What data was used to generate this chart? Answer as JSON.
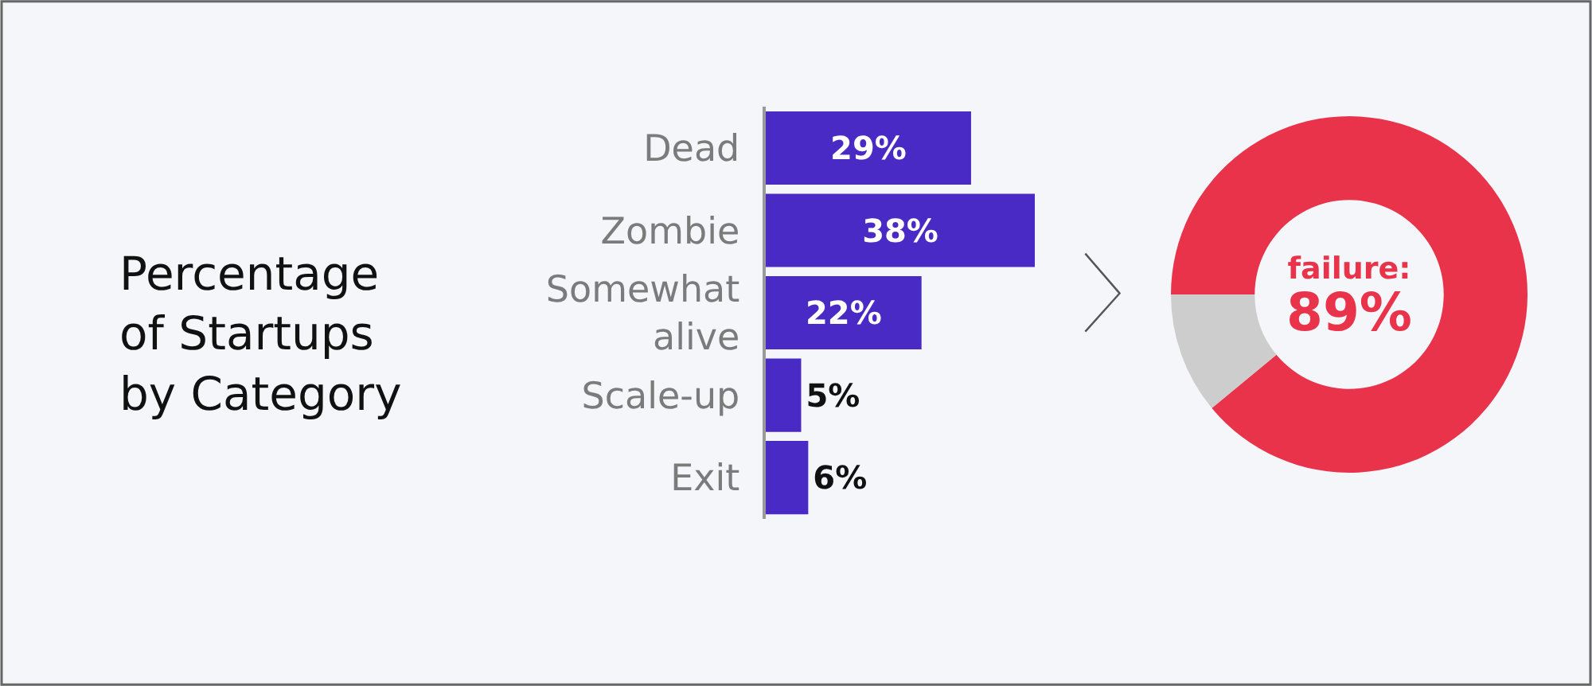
{
  "chart_data": [
    {
      "type": "bar",
      "title": "Percentage of Startups by Category",
      "orientation": "horizontal",
      "categories": [
        "Dead",
        "Zombie",
        "Somewhat alive",
        "Scale-up",
        "Exit"
      ],
      "values": [
        29,
        38,
        22,
        5,
        6
      ],
      "color": "#4a2ac4",
      "value_labels": [
        "29%",
        "38%",
        "22%",
        "5%",
        "6%"
      ]
    },
    {
      "type": "donut",
      "categories": [
        null,
        null
      ],
      "values": [
        89,
        11
      ],
      "colors": [
        "#e8334a",
        "#cdcdcd"
      ],
      "annotations": [
        "failure: 89%"
      ]
    }
  ]
}
